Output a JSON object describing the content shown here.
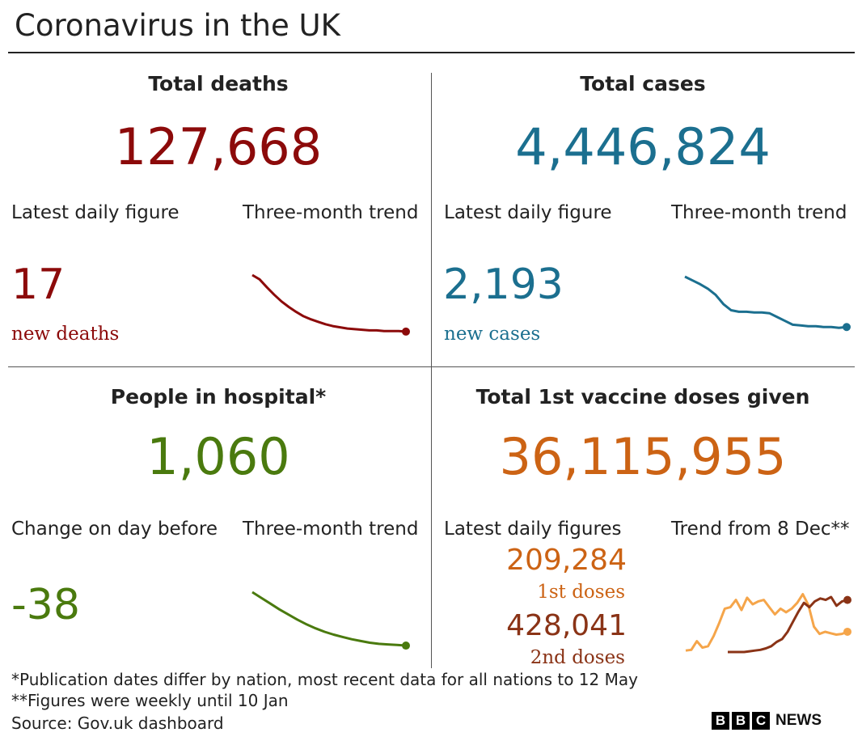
{
  "title": "Coronavirus in the UK",
  "colors": {
    "deaths": "#8c0a0a",
    "cases": "#1b6f8f",
    "hospital": "#4a7a0e",
    "vaccine": "#cc6314",
    "dose1_line": "#f5a54a",
    "dose2_line": "#8a3316"
  },
  "deaths": {
    "title": "Total deaths",
    "total": "127,668",
    "latest_label": "Latest daily figure",
    "trend_label": "Three-month trend",
    "latest": "17",
    "latest_unit": "new deaths"
  },
  "cases": {
    "title": "Total cases",
    "total": "4,446,824",
    "latest_label": "Latest daily figure",
    "trend_label": "Three-month trend",
    "latest": "2,193",
    "latest_unit": "new cases"
  },
  "hospital": {
    "title": "People in hospital*",
    "total": "1,060",
    "change_label": "Change on day before",
    "trend_label": "Three-month trend",
    "change": "-38"
  },
  "vaccine": {
    "title": "Total 1st vaccine doses given",
    "total": "36,115,955",
    "latest_label": "Latest daily figures",
    "trend_label": "Trend from 8 Dec**",
    "first": "209,284",
    "first_label": "1st doses",
    "second": "428,041",
    "second_label": "2nd doses"
  },
  "footnotes": {
    "note1": "*Publication dates differ by nation, most recent data for all nations to 12 May",
    "note2": "**Figures were weekly until 10 Jan",
    "source": "Source: Gov.uk dashboard"
  },
  "logo": {
    "letters": [
      "B",
      "B",
      "C"
    ],
    "news": "NEWS"
  },
  "chart_data": [
    {
      "type": "line",
      "series": [
        {
          "values": [
            100,
            93,
            80,
            68,
            57,
            48,
            40,
            33,
            28,
            24,
            20,
            17,
            15,
            13,
            12,
            11,
            10,
            10,
            9,
            9,
            9,
            8
          ]
        }
      ]
    },
    {
      "type": "line",
      "series": [
        {
          "values": [
            100,
            95,
            90,
            84,
            76,
            64,
            56,
            54,
            54,
            53,
            53,
            52,
            47,
            42,
            37,
            36,
            35,
            35,
            34,
            34,
            33,
            34
          ]
        }
      ]
    },
    {
      "type": "line",
      "series": [
        {
          "values": [
            100,
            90,
            80,
            70,
            61,
            52,
            44,
            37,
            31,
            26,
            22,
            18,
            15,
            12,
            10,
            9,
            8,
            7
          ]
        }
      ]
    },
    {
      "type": "line",
      "series": [
        {
          "values": [
            2,
            3,
            15,
            6,
            8,
            22,
            40,
            60,
            62,
            72,
            58,
            75,
            66,
            70,
            72,
            62,
            52,
            60,
            55,
            60,
            68,
            80,
            65,
            35,
            25,
            28,
            26,
            24,
            25,
            28
          ]
        },
        {
          "values": [
            0,
            0,
            0,
            0,
            1,
            2,
            3,
            5,
            8,
            14,
            18,
            28,
            42,
            56,
            68,
            62,
            70,
            74,
            72,
            76,
            64,
            70,
            72
          ]
        }
      ]
    }
  ]
}
